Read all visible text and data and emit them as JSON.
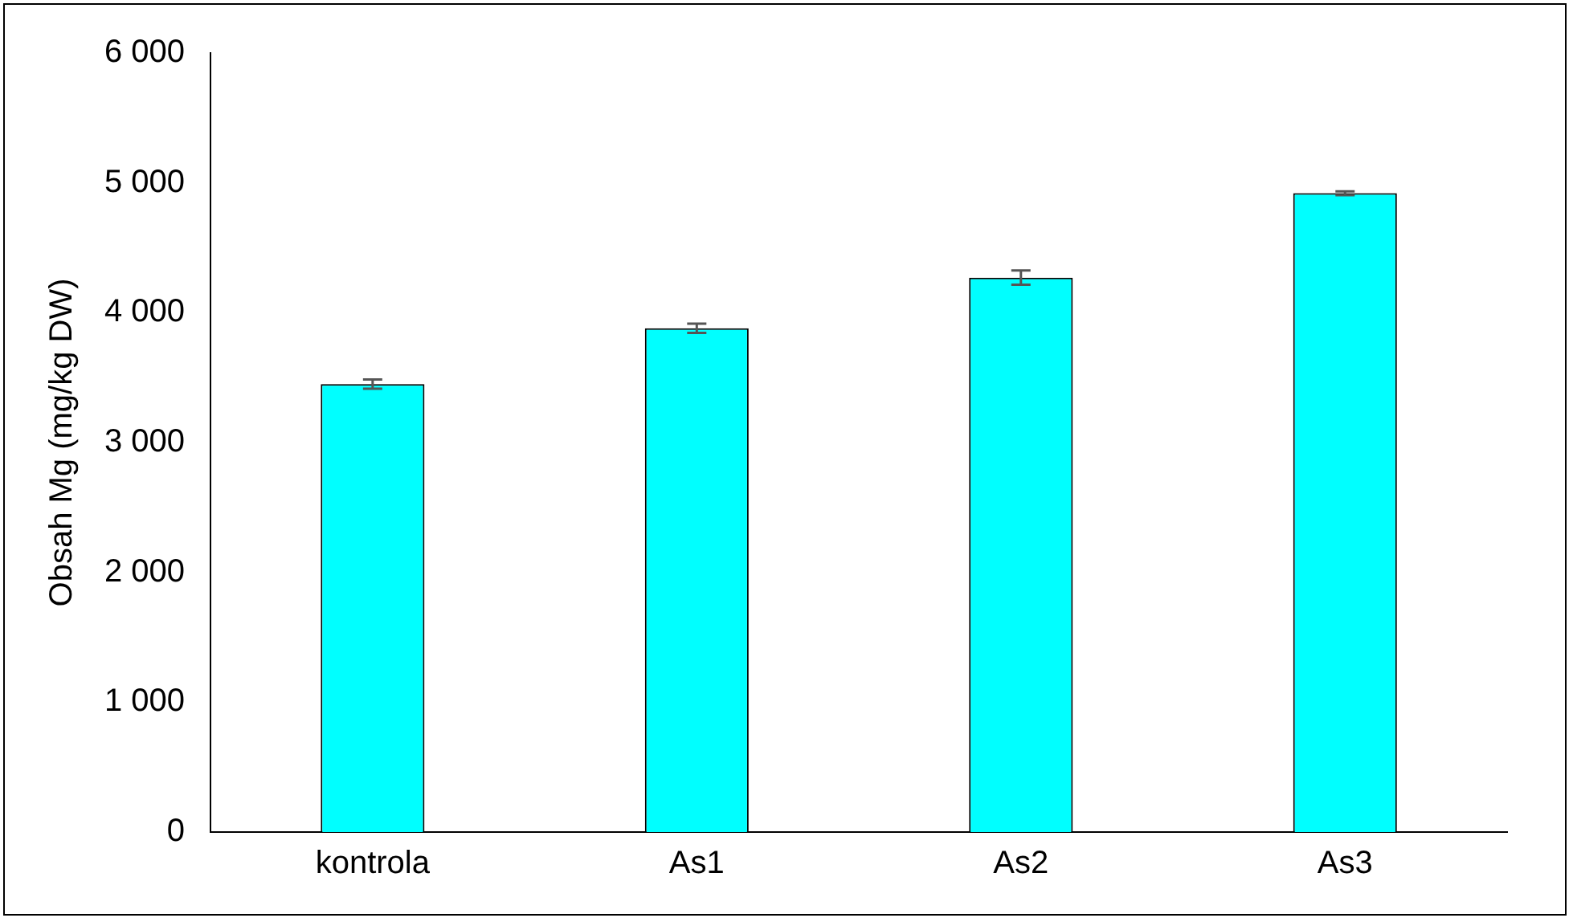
{
  "chart_data": {
    "type": "bar",
    "ylabel": "Obsah Mg (mg/kg DW)",
    "categories": [
      "kontrola",
      "As1",
      "As2",
      "As3"
    ],
    "values": [
      3450,
      3880,
      4270,
      4920
    ],
    "errors": [
      35,
      35,
      55,
      15
    ],
    "color": "#00ffff",
    "ylim": [
      0,
      6000
    ],
    "yticks": [
      {
        "value": 0,
        "label": "0"
      },
      {
        "value": 1000,
        "label": "1 000"
      },
      {
        "value": 2000,
        "label": "2 000"
      },
      {
        "value": 3000,
        "label": "3 000"
      },
      {
        "value": 4000,
        "label": "4 000"
      },
      {
        "value": 5000,
        "label": "5 000"
      },
      {
        "value": 6000,
        "label": "6 000"
      }
    ],
    "grid": false,
    "legend": false
  }
}
